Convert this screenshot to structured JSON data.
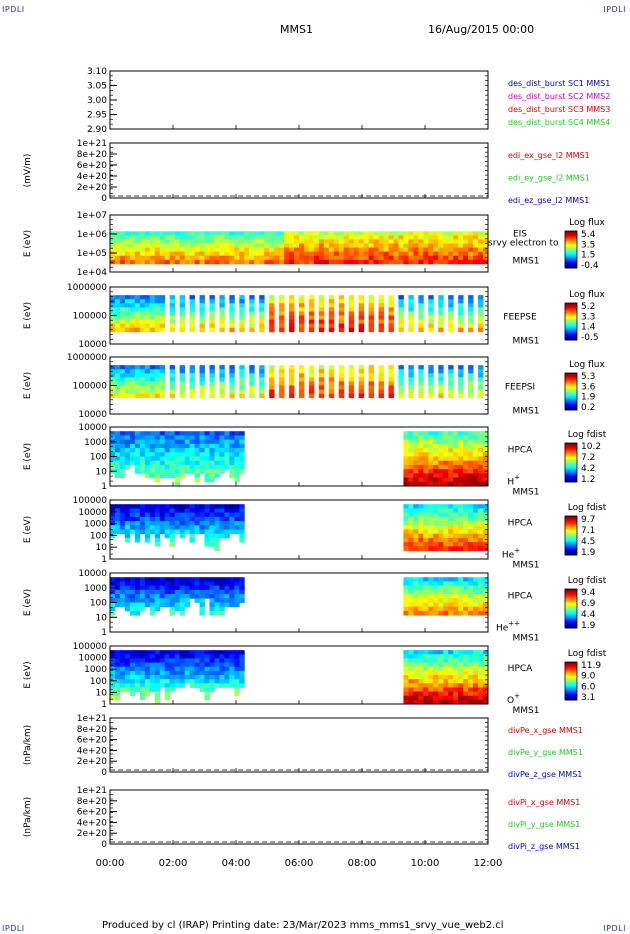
{
  "corners": {
    "tl": "IPDLI",
    "tr": "IPDLI",
    "bl": "IPDLI",
    "br": "IPDLI"
  },
  "header": {
    "spacecraft": "MMS1",
    "date": "16/Aug/2015 00:00"
  },
  "footer": {
    "text": "Produced by cl (IRAP)   Printing date: 23/Mar/2023   mms_mms1_srvy_vue_web2.cl"
  },
  "x_axis": {
    "ticks": [
      "00:00",
      "02:00",
      "04:00",
      "06:00",
      "08:00",
      "10:00",
      "12:00"
    ]
  },
  "colors": {
    "red": "#dd0000",
    "green": "#22cc22",
    "blue": "#0000cc",
    "magenta": "#cc00cc"
  },
  "chart_data": [
    {
      "type": "line",
      "ylabel": "",
      "yticks": [
        "3.10",
        "3.05",
        "3.00",
        "2.95",
        "2.90"
      ],
      "ylim": [
        2.9,
        3.1
      ],
      "legend": [
        {
          "text": "des_dist_burst SC1 MMS1",
          "color": "#0000cc"
        },
        {
          "text": "des_dist_burst SC2 MMS2",
          "color": "#cc00cc"
        },
        {
          "text": "des_dist_burst SC3 MMS3",
          "color": "#dd0000"
        },
        {
          "text": "des_dist_burst SC4 MMS4",
          "color": "#22cc22"
        }
      ]
    },
    {
      "type": "line",
      "ylabel": "(mV/m)",
      "yticks": [
        "1e+21",
        "8e+20",
        "6e+20",
        "4e+20",
        "2e+20",
        "0"
      ],
      "ylim": [
        0,
        1e+21
      ],
      "legend": [
        {
          "text": "edi_ex_gse_l2 MMS1",
          "color": "#dd0000"
        },
        {
          "text": "edi_ey_gse_l2 MMS1",
          "color": "#22cc22"
        },
        {
          "text": "edi_ez_gse_l2 MMS1",
          "color": "#0000cc"
        }
      ]
    },
    {
      "type": "heatmap",
      "ylabel": "E (eV)",
      "yticks": [
        "1e+07",
        "1e+06",
        "1e+05",
        "1e+04"
      ],
      "instrument": [
        "EIS",
        "MMS1"
      ],
      "overlay_text": "srvy electron to",
      "colorbar": {
        "title": "Log flux",
        "ticks": [
          "5.4",
          "3.5",
          "1.5",
          "-0.4"
        ]
      }
    },
    {
      "type": "heatmap",
      "ylabel": "E (eV)",
      "yticks": [
        "1000000",
        "100000",
        "10000"
      ],
      "instrument": [
        "FEEPSE",
        "MMS1"
      ],
      "colorbar": {
        "title": "Log flux",
        "ticks": [
          "5.2",
          "3.3",
          "1.4",
          "-0.5"
        ]
      }
    },
    {
      "type": "heatmap",
      "ylabel": "E (eV)",
      "yticks": [
        "1000000",
        "100000",
        "10000"
      ],
      "instrument": [
        "FEEPSI",
        "MMS1"
      ],
      "colorbar": {
        "title": "Log flux",
        "ticks": [
          "5.3",
          "3.6",
          "1.9",
          "0.2"
        ]
      }
    },
    {
      "type": "heatmap",
      "ylabel": "E (eV)",
      "yticks": [
        "10000",
        "1000",
        "100",
        "10",
        "1"
      ],
      "instrument": [
        "HPCA",
        "MMS1"
      ],
      "species": "H",
      "species_sup": "+",
      "colorbar": {
        "title": "Log fdist",
        "ticks": [
          "10.2",
          "7.2",
          "4.2",
          "1.2"
        ]
      }
    },
    {
      "type": "heatmap",
      "ylabel": "E (eV)",
      "yticks": [
        "100000",
        "10000",
        "1000",
        "100",
        "10",
        "1"
      ],
      "instrument": [
        "HPCA",
        "MMS1"
      ],
      "species": "He",
      "species_sup": "+",
      "colorbar": {
        "title": "Log fdist",
        "ticks": [
          "9.7",
          "7.1",
          "4.5",
          "1.9"
        ]
      }
    },
    {
      "type": "heatmap",
      "ylabel": "E (eV)",
      "yticks": [
        "10000",
        "1000",
        "100",
        "10",
        "1"
      ],
      "instrument": [
        "HPCA",
        "MMS1"
      ],
      "species": "He",
      "species_sup": "++",
      "colorbar": {
        "title": "Log fdist",
        "ticks": [
          "9.4",
          "6.9",
          "4.4",
          "1.9"
        ]
      }
    },
    {
      "type": "heatmap",
      "ylabel": "E (eV)",
      "yticks": [
        "100000",
        "10000",
        "1000",
        "100",
        "10",
        "1"
      ],
      "instrument": [
        "HPCA",
        "MMS1"
      ],
      "species": "O",
      "species_sup": "+",
      "colorbar": {
        "title": "Log fdist",
        "ticks": [
          "11.9",
          "9.0",
          "6.0",
          "3.1"
        ]
      }
    },
    {
      "type": "line",
      "ylabel": "(nPa/km)",
      "yticks": [
        "1e+21",
        "8e+20",
        "6e+20",
        "4e+20",
        "2e+20",
        "0"
      ],
      "ylim": [
        0,
        1e+21
      ],
      "legend": [
        {
          "text": "divPe_x_gse MMS1",
          "color": "#dd0000"
        },
        {
          "text": "divPe_y_gse MMS1",
          "color": "#22cc22"
        },
        {
          "text": "divPe_z_gse MMS1",
          "color": "#0000cc"
        }
      ]
    },
    {
      "type": "line",
      "ylabel": "(nPa/km)",
      "yticks": [
        "1e+21",
        "8e+20",
        "6e+20",
        "4e+20",
        "2e+20",
        "0"
      ],
      "ylim": [
        0,
        1e+21
      ],
      "legend": [
        {
          "text": "divPi_x_gse MMS1",
          "color": "#dd0000"
        },
        {
          "text": "divPi_y_gse MMS1",
          "color": "#22cc22"
        },
        {
          "text": "divPi_z_gse MMS1",
          "color": "#0000cc"
        }
      ]
    }
  ]
}
